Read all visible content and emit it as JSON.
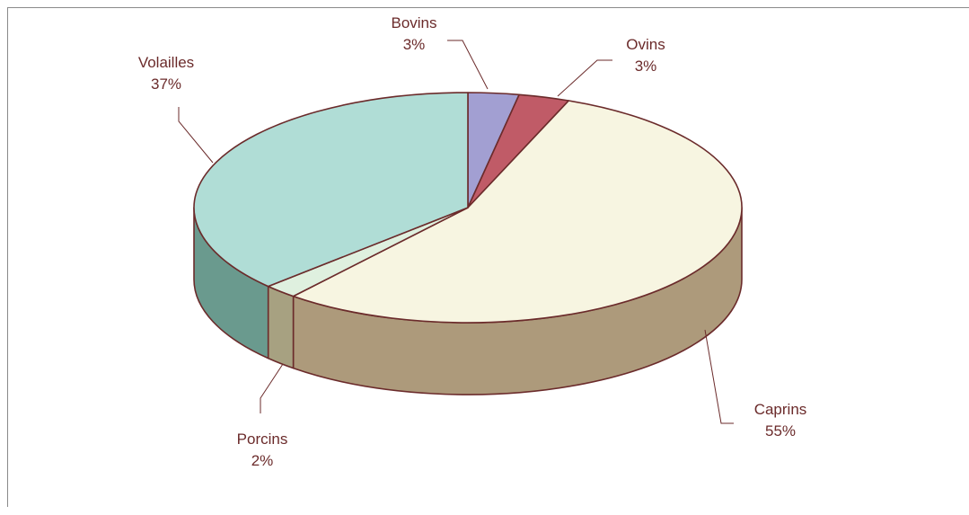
{
  "chart_data": {
    "type": "pie",
    "title": "",
    "categories": [
      "Bovins",
      "Ovins",
      "Caprins",
      "Porcins",
      "Volailles"
    ],
    "values": [
      3,
      3,
      55,
      2,
      37
    ],
    "value_labels": [
      "3%",
      "3%",
      "55%",
      "2%",
      "37%"
    ],
    "colors": {
      "top": [
        "#a29fd2",
        "#c05b67",
        "#f7f5e1",
        "#dff0df",
        "#b0ddd6"
      ],
      "side": [
        "#7c78ae",
        "#8e3b45",
        "#ad9a7b",
        "#a7a181",
        "#6a9a8e"
      ],
      "outline": "#6b2b2b",
      "label_text": "#6b2b2b"
    },
    "legend": "none",
    "three_d": true
  }
}
